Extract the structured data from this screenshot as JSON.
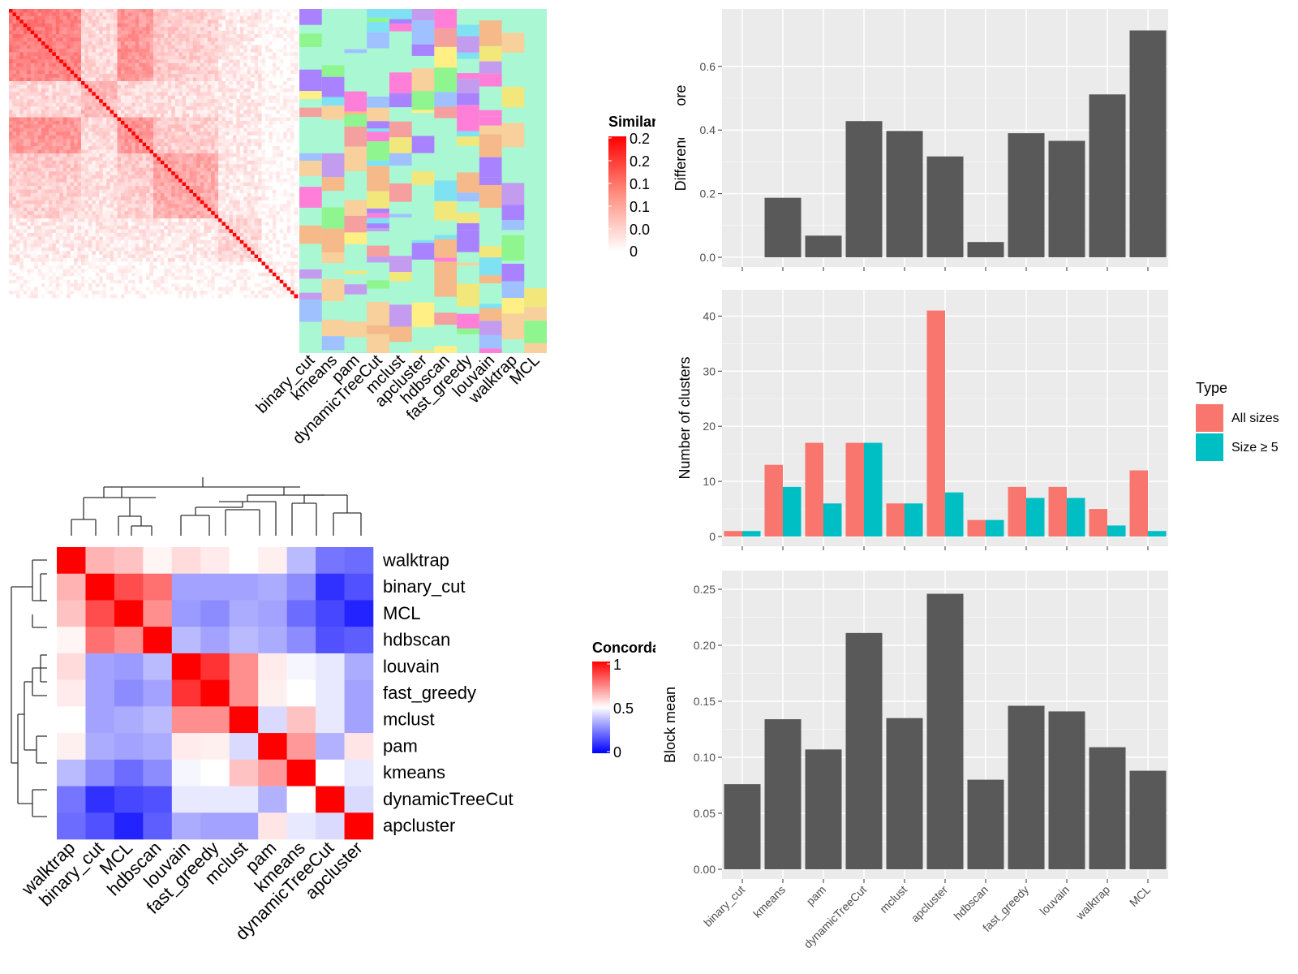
{
  "chart_data": [
    {
      "type": "heatmap",
      "legend": {
        "title": "Similarity",
        "ticks": [
          "0.2",
          "0.2",
          "0.1",
          "0.1",
          "0.0",
          "0"
        ]
      },
      "columns": [
        "binary_cut",
        "kmeans",
        "pam",
        "dynamicTreeCut",
        "mclust",
        "apcluster",
        "hdbscan",
        "fast_greedy",
        "louvain",
        "walktrap",
        "MCL"
      ]
    },
    {
      "type": "heatmap",
      "legend": {
        "title": "Concordance",
        "ticks": [
          "1",
          "0.5",
          "0"
        ]
      },
      "rows": [
        "walktrap",
        "binary_cut",
        "MCL",
        "hdbscan",
        "louvain",
        "fast_greedy",
        "mclust",
        "pam",
        "kmeans",
        "dynamicTreeCut",
        "apcluster"
      ],
      "columns": [
        "walktrap",
        "binary_cut",
        "MCL",
        "hdbscan",
        "louvain",
        "fast_greedy",
        "mclust",
        "pam",
        "kmeans",
        "dynamicTreeCut",
        "apcluster"
      ],
      "values": [
        [
          1.0,
          0.65,
          0.62,
          0.52,
          0.57,
          0.54,
          0.5,
          0.53,
          0.35,
          0.2,
          0.18
        ],
        [
          0.65,
          1.0,
          0.85,
          0.78,
          0.3,
          0.3,
          0.3,
          0.32,
          0.25,
          0.05,
          0.12
        ],
        [
          0.62,
          0.85,
          1.0,
          0.72,
          0.28,
          0.25,
          0.32,
          0.3,
          0.18,
          0.1,
          0.02
        ],
        [
          0.52,
          0.78,
          0.72,
          1.0,
          0.35,
          0.3,
          0.35,
          0.32,
          0.25,
          0.12,
          0.15
        ],
        [
          0.57,
          0.3,
          0.28,
          0.35,
          1.0,
          0.9,
          0.72,
          0.54,
          0.48,
          0.45,
          0.32
        ],
        [
          0.54,
          0.3,
          0.25,
          0.3,
          0.9,
          1.0,
          0.72,
          0.53,
          0.5,
          0.45,
          0.3
        ],
        [
          0.5,
          0.3,
          0.32,
          0.35,
          0.72,
          0.72,
          1.0,
          0.42,
          0.62,
          0.45,
          0.3
        ],
        [
          0.53,
          0.32,
          0.3,
          0.32,
          0.54,
          0.53,
          0.42,
          1.0,
          0.7,
          0.33,
          0.55
        ],
        [
          0.35,
          0.25,
          0.18,
          0.25,
          0.48,
          0.5,
          0.62,
          0.7,
          1.0,
          0.5,
          0.45
        ],
        [
          0.2,
          0.05,
          0.1,
          0.12,
          0.45,
          0.45,
          0.45,
          0.33,
          0.5,
          1.0,
          0.42
        ],
        [
          0.18,
          0.12,
          0.02,
          0.15,
          0.32,
          0.3,
          0.3,
          0.55,
          0.45,
          0.42,
          1.0
        ]
      ]
    },
    {
      "type": "bar",
      "categories": [
        "binary_cut",
        "kmeans",
        "pam",
        "dynamicTreeCut",
        "mclust",
        "apcluster",
        "hdbscan",
        "fast_greedy",
        "louvain",
        "walktrap",
        "MCL"
      ],
      "values": [
        0.0,
        0.187,
        0.068,
        0.428,
        0.397,
        0.317,
        0.048,
        0.39,
        0.366,
        0.512,
        0.713
      ],
      "ylabel": "Difference score",
      "ylim": [
        0,
        0.75
      ],
      "yticks": [
        "0.0",
        "0.2",
        "0.4",
        "0.6"
      ]
    },
    {
      "type": "bar",
      "categories": [
        "binary_cut",
        "kmeans",
        "pam",
        "dynamicTreeCut",
        "mclust",
        "apcluster",
        "hdbscan",
        "fast_greedy",
        "louvain",
        "walktrap",
        "MCL"
      ],
      "series": [
        {
          "name": "All sizes",
          "values": [
            1,
            13,
            17,
            17,
            6,
            41,
            3,
            9,
            9,
            5,
            12
          ],
          "color": "#F8766D"
        },
        {
          "name": "Size ≥ 5",
          "values": [
            1,
            9,
            6,
            17,
            6,
            8,
            3,
            7,
            7,
            2,
            1
          ],
          "color": "#00BFC4"
        }
      ],
      "ylabel": "Number of clusters",
      "ylim": [
        0,
        43
      ],
      "yticks": [
        "0",
        "10",
        "20",
        "30",
        "40"
      ],
      "legend": {
        "title": "Type",
        "position": "right"
      }
    },
    {
      "type": "bar",
      "categories": [
        "binary_cut",
        "kmeans",
        "pam",
        "dynamicTreeCut",
        "mclust",
        "apcluster",
        "hdbscan",
        "fast_greedy",
        "louvain",
        "walktrap",
        "MCL"
      ],
      "values": [
        0.076,
        0.134,
        0.107,
        0.211,
        0.135,
        0.246,
        0.08,
        0.146,
        0.141,
        0.109,
        0.088
      ],
      "ylabel": "Block mean",
      "ylim": [
        0,
        0.258
      ],
      "yticks": [
        "0.00",
        "0.05",
        "0.10",
        "0.15",
        "0.20",
        "0.25"
      ]
    }
  ]
}
